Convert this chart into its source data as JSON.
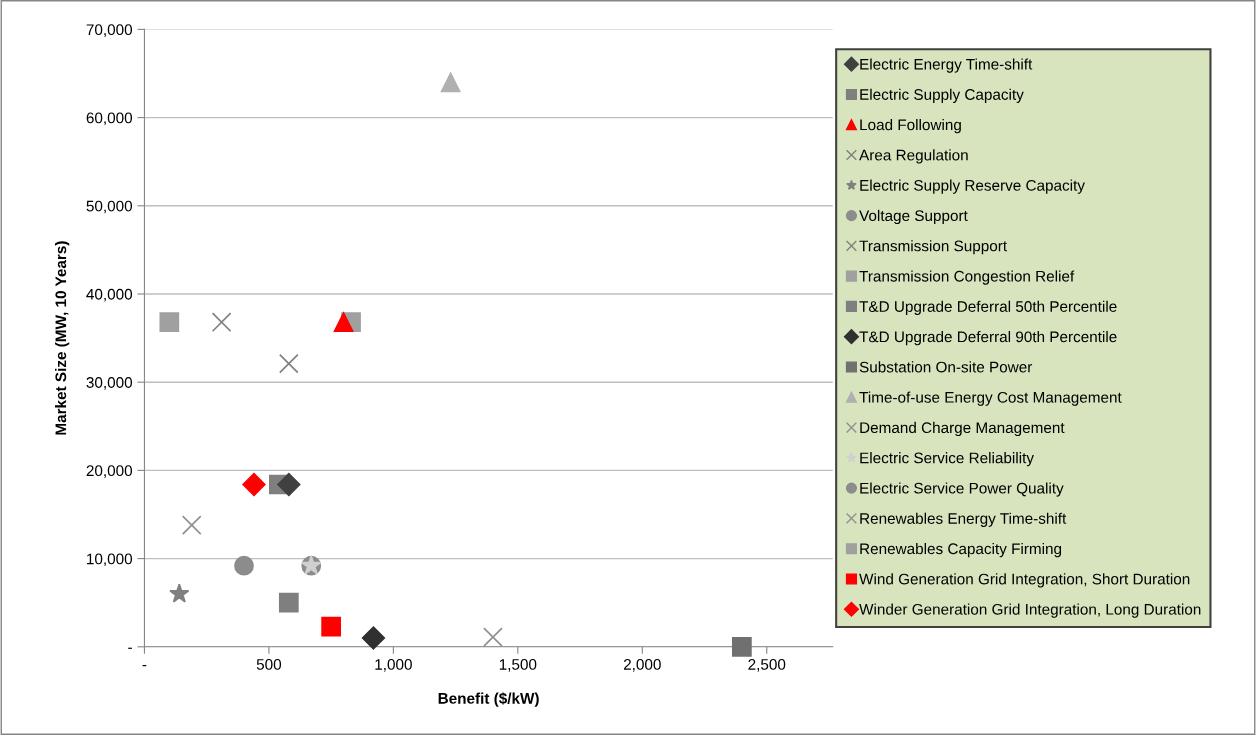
{
  "chart_data": {
    "type": "scatter",
    "xlabel": "Benefit ($/kW)",
    "ylabel": "Market Size (MW, 10 Years)",
    "xlim": [
      0,
      2765
    ],
    "ylim": [
      0,
      70000
    ],
    "xticks": [
      {
        "value": 0,
        "label": "-"
      },
      500,
      {
        "value": 1000,
        "label": "1,000"
      },
      {
        "value": 1500,
        "label": "1,500"
      },
      {
        "value": 2000,
        "label": "2,000"
      },
      {
        "value": 2500,
        "label": "2,500"
      }
    ],
    "yticks": [
      {
        "value": 0,
        "label": "-"
      },
      {
        "value": 10000,
        "label": "10,000"
      },
      {
        "value": 20000,
        "label": "20,000"
      },
      {
        "value": 30000,
        "label": "30,000"
      },
      {
        "value": 40000,
        "label": "40,000"
      },
      {
        "value": 50000,
        "label": "50,000"
      },
      {
        "value": 60000,
        "label": "60,000"
      },
      {
        "value": 70000,
        "label": "70,000"
      }
    ],
    "grid": "y",
    "legend": "right",
    "series": [
      {
        "name": "Electric Energy Time-shift",
        "marker": "diamond",
        "color": "#404040",
        "x": [
          580
        ],
        "values": [
          18400
        ]
      },
      {
        "name": "Electric Supply Capacity",
        "marker": "square",
        "color": "#7f7f7f",
        "x": [
          540
        ],
        "values": [
          18400
        ]
      },
      {
        "name": "Load Following",
        "marker": "triangle",
        "color": "#ff0000",
        "x": [
          800
        ],
        "values": [
          36800
        ]
      },
      {
        "name": "Area Regulation",
        "marker": "cross",
        "color": "#808080",
        "x": [
          580
        ],
        "values": [
          32100
        ]
      },
      {
        "name": "Electric Supply Reserve Capacity",
        "marker": "star",
        "color": "#808080",
        "x": [
          140
        ],
        "values": [
          6000
        ]
      },
      {
        "name": "Voltage Support",
        "marker": "circle",
        "color": "#8c8c8c",
        "x": [
          400
        ],
        "values": [
          9200
        ]
      },
      {
        "name": "Transmission Support",
        "marker": "cross",
        "color": "#808080",
        "x": [
          310
        ],
        "values": [
          36800
        ]
      },
      {
        "name": "Transmission Congestion Relief",
        "marker": "square",
        "color": "#a0a0a0",
        "x": [
          100
        ],
        "values": [
          36800
        ]
      },
      {
        "name": "T&D Upgrade Deferral 50th Percentile",
        "marker": "square",
        "color": "#7f7f7f",
        "x": [
          580
        ],
        "values": [
          5000
        ]
      },
      {
        "name": "T&D Upgrade Deferral 90th Percentile",
        "marker": "diamond",
        "color": "#303030",
        "x": [
          920
        ],
        "values": [
          1000
        ]
      },
      {
        "name": "Substation On-site Power",
        "marker": "square",
        "color": "#707070",
        "x": [
          2400
        ],
        "values": [
          0
        ]
      },
      {
        "name": "Time-of-use Energy Cost Management",
        "marker": "triangle",
        "color": "#b0b0b0",
        "x": [
          1230
        ],
        "values": [
          64000
        ]
      },
      {
        "name": "Demand Charge Management",
        "marker": "cross",
        "color": "#909090",
        "x": [
          1400
        ],
        "values": [
          1100
        ]
      },
      {
        "name": "Electric Service Reliability",
        "marker": "star",
        "color": "#d0d0d0",
        "x": [
          670
        ],
        "values": [
          9200
        ]
      },
      {
        "name": "Electric Service Power Quality",
        "marker": "circle",
        "color": "#8c8c8c",
        "x": [
          670
        ],
        "values": [
          9200
        ]
      },
      {
        "name": "Renewables Energy Time-shift",
        "marker": "cross",
        "color": "#909090",
        "x": [
          190
        ],
        "values": [
          13800
        ]
      },
      {
        "name": "Renewables Capacity Firming",
        "marker": "square",
        "color": "#a0a0a0",
        "x": [
          830
        ],
        "values": [
          36800
        ]
      },
      {
        "name": "Wind Generation Grid Integration, Short Duration",
        "marker": "square",
        "color": "#ff0000",
        "x": [
          750
        ],
        "values": [
          2300
        ]
      },
      {
        "name": "Winder Generation Grid Integration, Long Duration",
        "marker": "diamond",
        "color": "#ff0000",
        "x": [
          440
        ],
        "values": [
          18400
        ]
      }
    ]
  }
}
